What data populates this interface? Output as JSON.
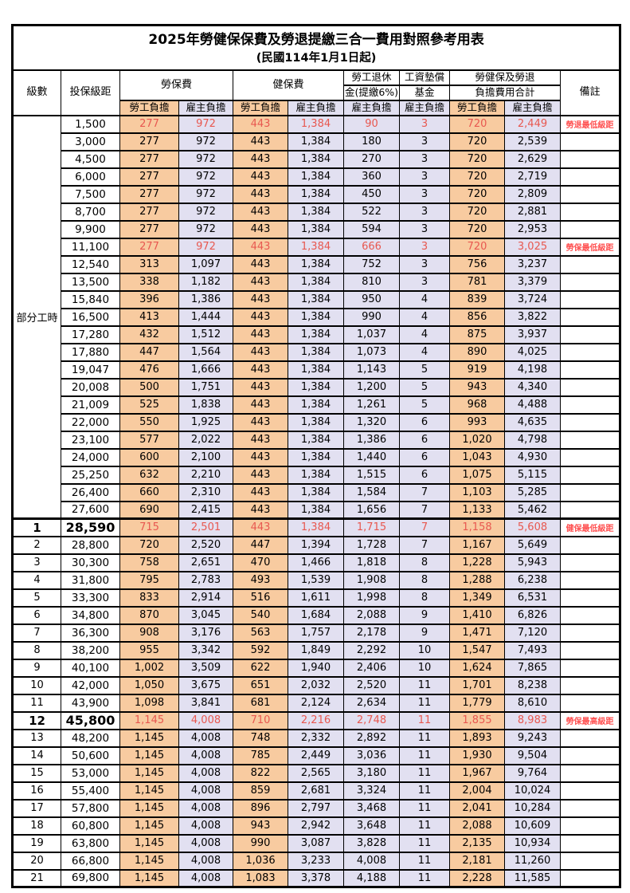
{
  "title": {
    "main": "2025年勞健保保費及勞退提繳三合一費用對照參考用表",
    "effective_date": "(民國114年1月1日起)"
  },
  "colors": {
    "employee_bg": "#F8CBA0",
    "employer_bg": "#E2E0F1",
    "value_red": "#E85850",
    "remark_red": "#FF5252"
  },
  "table": {
    "headers": {
      "level": "級數",
      "bracket": "投保級距",
      "labor_insurance": "勞保費",
      "health_insurance": "健保費",
      "pension_line1": "勞工退休",
      "pension_line2": "金(提繳6%)",
      "wage_fund_line1": "工資墊償",
      "wage_fund_line2": "基金",
      "total_line1": "勞健保及勞退",
      "total_line2": "負擔費用合計",
      "remark": "備註",
      "employee_share": "勞工負擔",
      "employer_share": "雇主負擔"
    },
    "group_label": "部分工時",
    "part_time_row_count": 23,
    "rows": [
      {
        "bracket": "1,500",
        "values": [
          "277",
          "972",
          "443",
          "1,384",
          "90",
          "3",
          "720",
          "2,449"
        ],
        "remark": "勞退最低級距",
        "red": true
      },
      {
        "bracket": "3,000",
        "values": [
          "277",
          "972",
          "443",
          "1,384",
          "180",
          "3",
          "720",
          "2,539"
        ],
        "remark": ""
      },
      {
        "bracket": "4,500",
        "values": [
          "277",
          "972",
          "443",
          "1,384",
          "270",
          "3",
          "720",
          "2,629"
        ],
        "remark": ""
      },
      {
        "bracket": "6,000",
        "values": [
          "277",
          "972",
          "443",
          "1,384",
          "360",
          "3",
          "720",
          "2,719"
        ],
        "remark": ""
      },
      {
        "bracket": "7,500",
        "values": [
          "277",
          "972",
          "443",
          "1,384",
          "450",
          "3",
          "720",
          "2,809"
        ],
        "remark": ""
      },
      {
        "bracket": "8,700",
        "values": [
          "277",
          "972",
          "443",
          "1,384",
          "522",
          "3",
          "720",
          "2,881"
        ],
        "remark": ""
      },
      {
        "bracket": "9,900",
        "values": [
          "277",
          "972",
          "443",
          "1,384",
          "594",
          "3",
          "720",
          "2,953"
        ],
        "remark": ""
      },
      {
        "bracket": "11,100",
        "values": [
          "277",
          "972",
          "443",
          "1,384",
          "666",
          "3",
          "720",
          "3,025"
        ],
        "remark": "勞保最低級距",
        "red": true
      },
      {
        "bracket": "12,540",
        "values": [
          "313",
          "1,097",
          "443",
          "1,384",
          "752",
          "3",
          "756",
          "3,237"
        ],
        "remark": ""
      },
      {
        "bracket": "13,500",
        "values": [
          "338",
          "1,182",
          "443",
          "1,384",
          "810",
          "3",
          "781",
          "3,379"
        ],
        "remark": ""
      },
      {
        "bracket": "15,840",
        "values": [
          "396",
          "1,386",
          "443",
          "1,384",
          "950",
          "4",
          "839",
          "3,724"
        ],
        "remark": ""
      },
      {
        "bracket": "16,500",
        "values": [
          "413",
          "1,444",
          "443",
          "1,384",
          "990",
          "4",
          "856",
          "3,822"
        ],
        "remark": ""
      },
      {
        "bracket": "17,280",
        "values": [
          "432",
          "1,512",
          "443",
          "1,384",
          "1,037",
          "4",
          "875",
          "3,937"
        ],
        "remark": ""
      },
      {
        "bracket": "17,880",
        "values": [
          "447",
          "1,564",
          "443",
          "1,384",
          "1,073",
          "4",
          "890",
          "4,025"
        ],
        "remark": ""
      },
      {
        "bracket": "19,047",
        "values": [
          "476",
          "1,666",
          "443",
          "1,384",
          "1,143",
          "5",
          "919",
          "4,198"
        ],
        "remark": ""
      },
      {
        "bracket": "20,008",
        "values": [
          "500",
          "1,751",
          "443",
          "1,384",
          "1,200",
          "5",
          "943",
          "4,340"
        ],
        "remark": ""
      },
      {
        "bracket": "21,009",
        "values": [
          "525",
          "1,838",
          "443",
          "1,384",
          "1,261",
          "5",
          "968",
          "4,488"
        ],
        "remark": ""
      },
      {
        "bracket": "22,000",
        "values": [
          "550",
          "1,925",
          "443",
          "1,384",
          "1,320",
          "6",
          "993",
          "4,635"
        ],
        "remark": ""
      },
      {
        "bracket": "23,100",
        "values": [
          "577",
          "2,022",
          "443",
          "1,384",
          "1,386",
          "6",
          "1,020",
          "4,798"
        ],
        "remark": ""
      },
      {
        "bracket": "24,000",
        "values": [
          "600",
          "2,100",
          "443",
          "1,384",
          "1,440",
          "6",
          "1,043",
          "4,930"
        ],
        "remark": ""
      },
      {
        "bracket": "25,250",
        "values": [
          "632",
          "2,210",
          "443",
          "1,384",
          "1,515",
          "6",
          "1,075",
          "5,115"
        ],
        "remark": ""
      },
      {
        "bracket": "26,400",
        "values": [
          "660",
          "2,310",
          "443",
          "1,384",
          "1,584",
          "7",
          "1,103",
          "5,285"
        ],
        "remark": ""
      },
      {
        "bracket": "27,600",
        "values": [
          "690",
          "2,415",
          "443",
          "1,384",
          "1,656",
          "7",
          "1,133",
          "5,462"
        ],
        "remark": ""
      },
      {
        "level": "1",
        "bracket": "28,590",
        "values": [
          "715",
          "2,501",
          "443",
          "1,384",
          "1,715",
          "7",
          "1,158",
          "5,608"
        ],
        "remark": "健保最低級距",
        "red": true,
        "big": true,
        "section_start": true
      },
      {
        "level": "2",
        "bracket": "28,800",
        "values": [
          "720",
          "2,520",
          "447",
          "1,394",
          "1,728",
          "7",
          "1,167",
          "5,649"
        ],
        "remark": ""
      },
      {
        "level": "3",
        "bracket": "30,300",
        "values": [
          "758",
          "2,651",
          "470",
          "1,466",
          "1,818",
          "8",
          "1,228",
          "5,943"
        ],
        "remark": ""
      },
      {
        "level": "4",
        "bracket": "31,800",
        "values": [
          "795",
          "2,783",
          "493",
          "1,539",
          "1,908",
          "8",
          "1,288",
          "6,238"
        ],
        "remark": ""
      },
      {
        "level": "5",
        "bracket": "33,300",
        "values": [
          "833",
          "2,914",
          "516",
          "1,611",
          "1,998",
          "8",
          "1,349",
          "6,531"
        ],
        "remark": ""
      },
      {
        "level": "6",
        "bracket": "34,800",
        "values": [
          "870",
          "3,045",
          "540",
          "1,684",
          "2,088",
          "9",
          "1,410",
          "6,826"
        ],
        "remark": ""
      },
      {
        "level": "7",
        "bracket": "36,300",
        "values": [
          "908",
          "3,176",
          "563",
          "1,757",
          "2,178",
          "9",
          "1,471",
          "7,120"
        ],
        "remark": ""
      },
      {
        "level": "8",
        "bracket": "38,200",
        "values": [
          "955",
          "3,342",
          "592",
          "1,849",
          "2,292",
          "10",
          "1,547",
          "7,493"
        ],
        "remark": ""
      },
      {
        "level": "9",
        "bracket": "40,100",
        "values": [
          "1,002",
          "3,509",
          "622",
          "1,940",
          "2,406",
          "10",
          "1,624",
          "7,865"
        ],
        "remark": ""
      },
      {
        "level": "10",
        "bracket": "42,000",
        "values": [
          "1,050",
          "3,675",
          "651",
          "2,032",
          "2,520",
          "11",
          "1,701",
          "8,238"
        ],
        "remark": ""
      },
      {
        "level": "11",
        "bracket": "43,900",
        "values": [
          "1,098",
          "3,841",
          "681",
          "2,124",
          "2,634",
          "11",
          "1,779",
          "8,610"
        ],
        "remark": ""
      },
      {
        "level": "12",
        "bracket": "45,800",
        "values": [
          "1,145",
          "4,008",
          "710",
          "2,216",
          "2,748",
          "11",
          "1,855",
          "8,983"
        ],
        "remark": "勞保最高級距",
        "red": true,
        "big": true
      },
      {
        "level": "13",
        "bracket": "48,200",
        "values": [
          "1,145",
          "4,008",
          "748",
          "2,332",
          "2,892",
          "11",
          "1,893",
          "9,243"
        ],
        "remark": ""
      },
      {
        "level": "14",
        "bracket": "50,600",
        "values": [
          "1,145",
          "4,008",
          "785",
          "2,449",
          "3,036",
          "11",
          "1,930",
          "9,504"
        ],
        "remark": ""
      },
      {
        "level": "15",
        "bracket": "53,000",
        "values": [
          "1,145",
          "4,008",
          "822",
          "2,565",
          "3,180",
          "11",
          "1,967",
          "9,764"
        ],
        "remark": ""
      },
      {
        "level": "16",
        "bracket": "55,400",
        "values": [
          "1,145",
          "4,008",
          "859",
          "2,681",
          "3,324",
          "11",
          "2,004",
          "10,024"
        ],
        "remark": ""
      },
      {
        "level": "17",
        "bracket": "57,800",
        "values": [
          "1,145",
          "4,008",
          "896",
          "2,797",
          "3,468",
          "11",
          "2,041",
          "10,284"
        ],
        "remark": ""
      },
      {
        "level": "18",
        "bracket": "60,800",
        "values": [
          "1,145",
          "4,008",
          "943",
          "2,942",
          "3,648",
          "11",
          "2,088",
          "10,609"
        ],
        "remark": ""
      },
      {
        "level": "19",
        "bracket": "63,800",
        "values": [
          "1,145",
          "4,008",
          "990",
          "3,087",
          "3,828",
          "11",
          "2,135",
          "10,934"
        ],
        "remark": ""
      },
      {
        "level": "20",
        "bracket": "66,800",
        "values": [
          "1,145",
          "4,008",
          "1,036",
          "3,233",
          "4,008",
          "11",
          "2,181",
          "11,260"
        ],
        "remark": ""
      },
      {
        "level": "21",
        "bracket": "69,800",
        "values": [
          "1,145",
          "4,008",
          "1,083",
          "3,378",
          "4,188",
          "11",
          "2,228",
          "11,585"
        ],
        "remark": ""
      }
    ]
  }
}
